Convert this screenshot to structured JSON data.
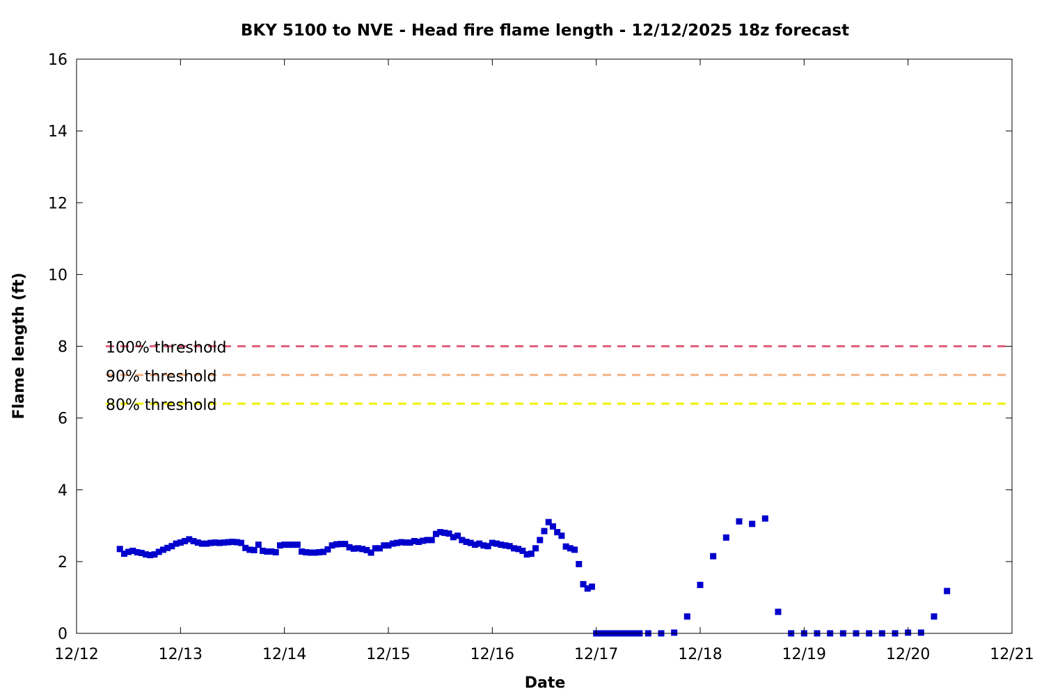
{
  "chart_data": {
    "type": "scatter",
    "title": "BKY 5100 to NVE - Head fire flame length - 12/12/2025 18z forecast",
    "xlabel": "Date",
    "ylabel": "Flame length (ft)",
    "xlim": [
      "12/12",
      "12/21"
    ],
    "ylim": [
      0,
      16
    ],
    "x_ticks": [
      "12/12",
      "12/13",
      "12/14",
      "12/15",
      "12/16",
      "12/17",
      "12/18",
      "12/19",
      "12/20",
      "12/21"
    ],
    "y_ticks": [
      "0",
      "2",
      "4",
      "6",
      "8",
      "10",
      "12",
      "14",
      "16"
    ],
    "grid": false,
    "marker_color": "#0000cc",
    "thresholds": [
      {
        "label": "100% threshold",
        "value": 8.0,
        "color": "#e0607a"
      },
      {
        "label": "90% threshold",
        "value": 7.2,
        "color": "#f4b183"
      },
      {
        "label": "80% threshold",
        "value": 6.4,
        "color": "#f0f000"
      }
    ],
    "series": [
      {
        "points": [
          [
            "12/12 10:00",
            2.35
          ],
          [
            "12/12 11:00",
            2.22
          ],
          [
            "12/12 12:00",
            2.27
          ],
          [
            "12/12 13:00",
            2.3
          ],
          [
            "12/12 14:00",
            2.26
          ],
          [
            "12/12 15:00",
            2.24
          ],
          [
            "12/12 16:00",
            2.2
          ],
          [
            "12/12 17:00",
            2.18
          ],
          [
            "12/12 18:00",
            2.2
          ],
          [
            "12/12 19:00",
            2.27
          ],
          [
            "12/12 20:00",
            2.33
          ],
          [
            "12/12 21:00",
            2.38
          ],
          [
            "12/12 22:00",
            2.43
          ],
          [
            "12/12 23:00",
            2.5
          ],
          [
            "12/13 00:00",
            2.53
          ],
          [
            "12/13 01:00",
            2.57
          ],
          [
            "12/13 02:00",
            2.62
          ],
          [
            "12/13 03:00",
            2.57
          ],
          [
            "12/13 04:00",
            2.53
          ],
          [
            "12/13 05:00",
            2.5
          ],
          [
            "12/13 06:00",
            2.5
          ],
          [
            "12/13 07:00",
            2.52
          ],
          [
            "12/13 08:00",
            2.53
          ],
          [
            "12/13 09:00",
            2.52
          ],
          [
            "12/13 10:00",
            2.53
          ],
          [
            "12/13 11:00",
            2.54
          ],
          [
            "12/13 12:00",
            2.55
          ],
          [
            "12/13 13:00",
            2.54
          ],
          [
            "12/13 14:00",
            2.52
          ],
          [
            "12/13 15:00",
            2.38
          ],
          [
            "12/13 16:00",
            2.33
          ],
          [
            "12/13 17:00",
            2.32
          ],
          [
            "12/13 18:00",
            2.47
          ],
          [
            "12/13 19:00",
            2.3
          ],
          [
            "12/13 20:00",
            2.28
          ],
          [
            "12/13 21:00",
            2.28
          ],
          [
            "12/13 22:00",
            2.26
          ],
          [
            "12/13 23:00",
            2.45
          ],
          [
            "12/14 00:00",
            2.47
          ],
          [
            "12/14 01:00",
            2.47
          ],
          [
            "12/14 02:00",
            2.47
          ],
          [
            "12/14 03:00",
            2.47
          ],
          [
            "12/14 04:00",
            2.28
          ],
          [
            "12/14 05:00",
            2.26
          ],
          [
            "12/14 06:00",
            2.25
          ],
          [
            "12/14 07:00",
            2.25
          ],
          [
            "12/14 08:00",
            2.26
          ],
          [
            "12/14 09:00",
            2.27
          ],
          [
            "12/14 10:00",
            2.34
          ],
          [
            "12/14 11:00",
            2.45
          ],
          [
            "12/14 12:00",
            2.48
          ],
          [
            "12/14 13:00",
            2.49
          ],
          [
            "12/14 14:00",
            2.49
          ],
          [
            "12/14 15:00",
            2.4
          ],
          [
            "12/14 16:00",
            2.36
          ],
          [
            "12/14 17:00",
            2.37
          ],
          [
            "12/14 18:00",
            2.35
          ],
          [
            "12/14 19:00",
            2.32
          ],
          [
            "12/14 20:00",
            2.25
          ],
          [
            "12/14 21:00",
            2.37
          ],
          [
            "12/14 22:00",
            2.37
          ],
          [
            "12/14 23:00",
            2.45
          ],
          [
            "12/15 00:00",
            2.45
          ],
          [
            "12/15 01:00",
            2.5
          ],
          [
            "12/15 02:00",
            2.52
          ],
          [
            "12/15 03:00",
            2.54
          ],
          [
            "12/15 04:00",
            2.53
          ],
          [
            "12/15 05:00",
            2.53
          ],
          [
            "12/15 06:00",
            2.57
          ],
          [
            "12/15 07:00",
            2.55
          ],
          [
            "12/15 08:00",
            2.58
          ],
          [
            "12/15 09:00",
            2.6
          ],
          [
            "12/15 10:00",
            2.6
          ],
          [
            "12/15 11:00",
            2.77
          ],
          [
            "12/15 12:00",
            2.82
          ],
          [
            "12/15 13:00",
            2.8
          ],
          [
            "12/15 14:00",
            2.78
          ],
          [
            "12/15 15:00",
            2.68
          ],
          [
            "12/15 16:00",
            2.72
          ],
          [
            "12/15 17:00",
            2.6
          ],
          [
            "12/15 18:00",
            2.55
          ],
          [
            "12/15 19:00",
            2.52
          ],
          [
            "12/15 20:00",
            2.47
          ],
          [
            "12/15 21:00",
            2.5
          ],
          [
            "12/15 22:00",
            2.45
          ],
          [
            "12/15 23:00",
            2.43
          ],
          [
            "12/16 00:00",
            2.52
          ],
          [
            "12/16 01:00",
            2.5
          ],
          [
            "12/16 02:00",
            2.47
          ],
          [
            "12/16 03:00",
            2.45
          ],
          [
            "12/16 04:00",
            2.43
          ],
          [
            "12/16 05:00",
            2.37
          ],
          [
            "12/16 06:00",
            2.35
          ],
          [
            "12/16 07:00",
            2.3
          ],
          [
            "12/16 08:00",
            2.2
          ],
          [
            "12/16 09:00",
            2.22
          ],
          [
            "12/16 10:00",
            2.37
          ],
          [
            "12/16 11:00",
            2.6
          ],
          [
            "12/16 12:00",
            2.85
          ],
          [
            "12/16 13:00",
            3.1
          ],
          [
            "12/16 14:00",
            2.98
          ],
          [
            "12/16 15:00",
            2.82
          ],
          [
            "12/16 16:00",
            2.72
          ],
          [
            "12/16 17:00",
            2.42
          ],
          [
            "12/16 18:00",
            2.37
          ],
          [
            "12/16 19:00",
            2.33
          ],
          [
            "12/16 20:00",
            1.93
          ],
          [
            "12/16 21:00",
            1.37
          ],
          [
            "12/16 22:00",
            1.25
          ],
          [
            "12/16 23:00",
            1.3
          ],
          [
            "12/17 00:00",
            0.0
          ],
          [
            "12/17 01:00",
            0.0
          ],
          [
            "12/17 02:00",
            0.0
          ],
          [
            "12/17 03:00",
            0.0
          ],
          [
            "12/17 04:00",
            0.0
          ],
          [
            "12/17 05:00",
            0.0
          ],
          [
            "12/17 06:00",
            0.0
          ],
          [
            "12/17 07:00",
            0.0
          ],
          [
            "12/17 08:00",
            0.0
          ],
          [
            "12/17 09:00",
            0.0
          ],
          [
            "12/17 10:00",
            0.0
          ],
          [
            "12/17 12:00",
            0.0
          ],
          [
            "12/17 15:00",
            0.0
          ],
          [
            "12/17 18:00",
            0.02
          ],
          [
            "12/17 21:00",
            0.47
          ],
          [
            "12/18 00:00",
            1.35
          ],
          [
            "12/18 03:00",
            2.15
          ],
          [
            "12/18 06:00",
            2.67
          ],
          [
            "12/18 09:00",
            3.12
          ],
          [
            "12/18 12:00",
            3.05
          ],
          [
            "12/18 15:00",
            3.2
          ],
          [
            "12/18 18:00",
            0.6
          ],
          [
            "12/18 21:00",
            0.0
          ],
          [
            "12/19 00:00",
            0.0
          ],
          [
            "12/19 03:00",
            0.0
          ],
          [
            "12/19 06:00",
            0.0
          ],
          [
            "12/19 09:00",
            0.0
          ],
          [
            "12/19 12:00",
            0.0
          ],
          [
            "12/19 15:00",
            0.0
          ],
          [
            "12/19 18:00",
            0.0
          ],
          [
            "12/19 21:00",
            0.0
          ],
          [
            "12/20 00:00",
            0.02
          ],
          [
            "12/20 03:00",
            0.02
          ],
          [
            "12/20 06:00",
            0.47
          ],
          [
            "12/20 09:00",
            1.18
          ]
        ]
      }
    ]
  }
}
